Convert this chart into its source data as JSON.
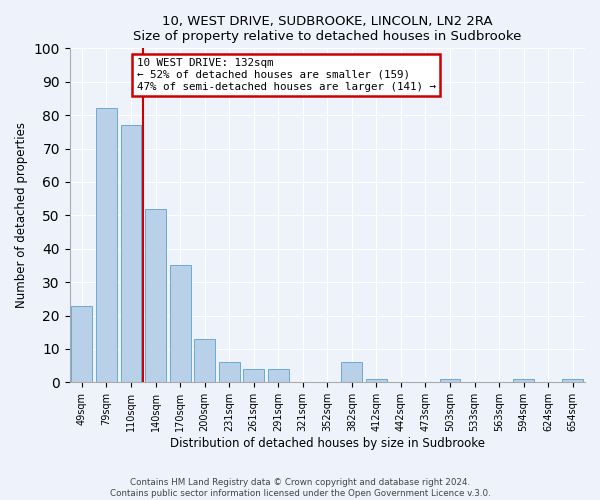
{
  "title": "10, WEST DRIVE, SUDBROOKE, LINCOLN, LN2 2RA",
  "subtitle": "Size of property relative to detached houses in Sudbrooke",
  "xlabel": "Distribution of detached houses by size in Sudbrooke",
  "ylabel": "Number of detached properties",
  "categories": [
    "49sqm",
    "79sqm",
    "110sqm",
    "140sqm",
    "170sqm",
    "200sqm",
    "231sqm",
    "261sqm",
    "291sqm",
    "321sqm",
    "352sqm",
    "382sqm",
    "412sqm",
    "442sqm",
    "473sqm",
    "503sqm",
    "533sqm",
    "563sqm",
    "594sqm",
    "624sqm",
    "654sqm"
  ],
  "values": [
    23,
    82,
    77,
    52,
    35,
    13,
    6,
    4,
    4,
    0,
    0,
    6,
    1,
    0,
    0,
    1,
    0,
    0,
    1,
    0,
    1
  ],
  "bar_color": "#b8d0e8",
  "bar_edge_color": "#6aaad4",
  "background_color": "#eef2fb",
  "grid_color": "#ffffff",
  "marker_line_color": "#cc0000",
  "annotation_box_text": "10 WEST DRIVE: 132sqm\n← 52% of detached houses are smaller (159)\n47% of semi-detached houses are larger (141) →",
  "annotation_box_color": "#cc0000",
  "annotation_box_bg": "#ffffff",
  "ylim": [
    0,
    100
  ],
  "footer1": "Contains HM Land Registry data © Crown copyright and database right 2024.",
  "footer2": "Contains public sector information licensed under the Open Government Licence v.3.0.",
  "n_bins": 21
}
